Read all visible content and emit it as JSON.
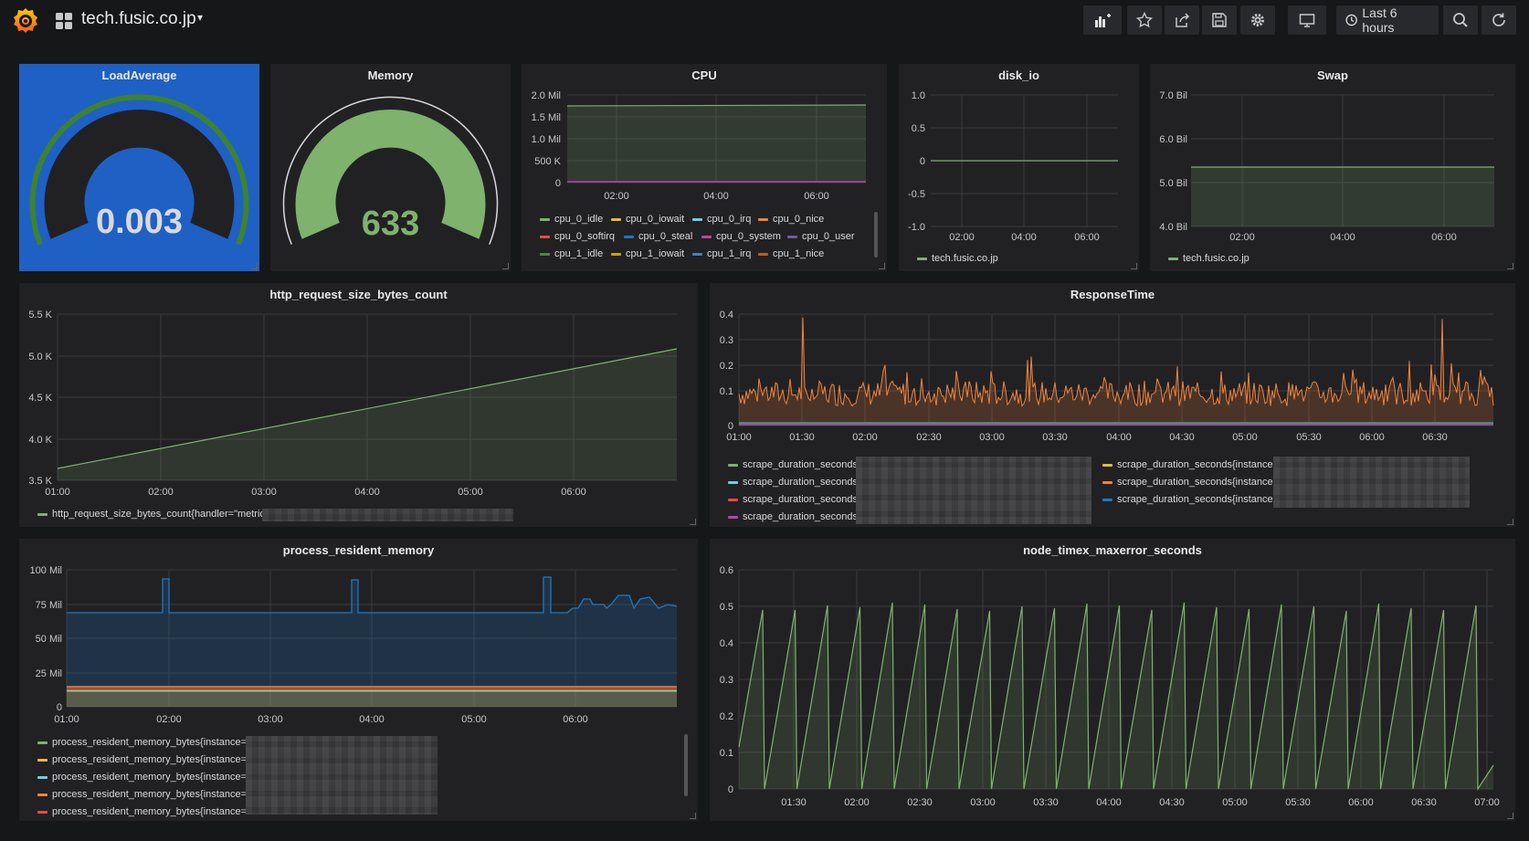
{
  "header": {
    "dashboard_title": "tech.fusic.co.jp",
    "time_range": "Last 6 hours"
  },
  "toolbar_icons": [
    "add-panel-icon",
    "star-icon",
    "share-icon",
    "save-icon",
    "gear-icon",
    "monitor-icon",
    "clock-icon",
    "zoom-out-icon",
    "refresh-icon"
  ],
  "colors": {
    "green": "#7eb26d",
    "orange": "#ef843c",
    "yellow": "#eab839",
    "cyan": "#6ed0e0",
    "red": "#e24d42",
    "blue": "#1f78c1",
    "magenta": "#ba43a9",
    "purple": "#705da0",
    "gauge_blue_bg": "#1f60c4"
  },
  "panels": {
    "loadaverage": {
      "title": "LoadAverage",
      "value": "0.003"
    },
    "memory": {
      "title": "Memory",
      "value": "633"
    },
    "cpu": {
      "title": "CPU",
      "y_ticks": [
        "2.0 Mil",
        "1.5 Mil",
        "1.0 Mil",
        "500 K",
        "0"
      ],
      "x_ticks": [
        "02:00",
        "04:00",
        "06:00"
      ],
      "legend": [
        {
          "label": "cpu_0_idle",
          "color": "#7eb26d"
        },
        {
          "label": "cpu_0_iowait",
          "color": "#eab839"
        },
        {
          "label": "cpu_0_irq",
          "color": "#6ed0e0"
        },
        {
          "label": "cpu_0_nice",
          "color": "#ef843c"
        },
        {
          "label": "cpu_0_softirq",
          "color": "#e24d42"
        },
        {
          "label": "cpu_0_steal",
          "color": "#1f78c1"
        },
        {
          "label": "cpu_0_system",
          "color": "#ba43a9"
        },
        {
          "label": "cpu_0_user",
          "color": "#705da0"
        },
        {
          "label": "cpu_1_idle",
          "color": "#508642"
        },
        {
          "label": "cpu_1_iowait",
          "color": "#cca300"
        },
        {
          "label": "cpu_1_irq",
          "color": "#447ebc"
        },
        {
          "label": "cpu_1_nice",
          "color": "#c15c17"
        }
      ]
    },
    "disk_io": {
      "title": "disk_io",
      "y_ticks": [
        "1.0",
        "0.5",
        "0",
        "-0.5",
        "-1.0"
      ],
      "x_ticks": [
        "02:00",
        "04:00",
        "06:00"
      ],
      "legend": "tech.fusic.co.jp"
    },
    "swap": {
      "title": "Swap",
      "y_ticks": [
        "7.0 Bil",
        "6.0 Bil",
        "5.0 Bil",
        "4.0 Bil"
      ],
      "x_ticks": [
        "02:00",
        "04:00",
        "06:00"
      ],
      "legend": "tech.fusic.co.jp"
    },
    "http": {
      "title": "http_request_size_bytes_count",
      "y_ticks": [
        "5.5 K",
        "5.0 K",
        "4.5 K",
        "4.0 K",
        "3.5 K"
      ],
      "x_ticks": [
        "01:00",
        "02:00",
        "03:00",
        "04:00",
        "05:00",
        "06:00"
      ],
      "legend": "http_request_size_bytes_count{handler=\"metric"
    },
    "response": {
      "title": "ResponseTime",
      "y_ticks": [
        "0.4",
        "0.3",
        "0.2",
        "0.1",
        "0"
      ],
      "x_ticks": [
        "01:00",
        "01:30",
        "02:00",
        "02:30",
        "03:00",
        "03:30",
        "04:00",
        "04:30",
        "05:00",
        "05:30",
        "06:00",
        "06:30"
      ],
      "legend_left": [
        {
          "label": "scrape_duration_seconds",
          "color": "#7eb26d"
        },
        {
          "label": "scrape_duration_seconds",
          "color": "#6ed0e0"
        },
        {
          "label": "scrape_duration_seconds",
          "color": "#e24d42"
        },
        {
          "label": "scrape_duration_seconds",
          "color": "#ba43a9"
        }
      ],
      "legend_right": [
        {
          "label": "scrape_duration_seconds{instance",
          "color": "#eab839"
        },
        {
          "label": "scrape_duration_seconds{instance",
          "color": "#ef843c"
        },
        {
          "label": "scrape_duration_seconds{instance",
          "color": "#1f78c1"
        }
      ]
    },
    "process": {
      "title": "process_resident_memory",
      "y_ticks": [
        "100 Mil",
        "75 Mil",
        "50 Mil",
        "25 Mil",
        "0"
      ],
      "x_ticks": [
        "01:00",
        "02:00",
        "03:00",
        "04:00",
        "05:00",
        "06:00"
      ],
      "legend": [
        {
          "label": "process_resident_memory_bytes{instance=",
          "color": "#7eb26d"
        },
        {
          "label": "process_resident_memory_bytes{instance=",
          "color": "#eab839"
        },
        {
          "label": "process_resident_memory_bytes{instance=",
          "color": "#6ed0e0"
        },
        {
          "label": "process_resident_memory_bytes{instance=",
          "color": "#ef843c"
        },
        {
          "label": "process_resident_memory_bytes{instance=",
          "color": "#e24d42"
        }
      ]
    },
    "timex": {
      "title": "node_timex_maxerror_seconds",
      "y_ticks": [
        "0.6",
        "0.5",
        "0.4",
        "0.3",
        "0.2",
        "0.1",
        "0"
      ],
      "x_ticks": [
        "01:30",
        "02:00",
        "02:30",
        "03:00",
        "03:30",
        "04:00",
        "04:30",
        "05:00",
        "05:30",
        "06:00",
        "06:30",
        "07:00"
      ]
    }
  }
}
